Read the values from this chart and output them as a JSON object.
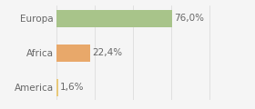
{
  "categories": [
    "America",
    "Africa",
    "Europa"
  ],
  "values": [
    1.6,
    22.4,
    76.0
  ],
  "labels": [
    "1,6%",
    "22,4%",
    "76,0%"
  ],
  "bar_colors": [
    "#e8c87a",
    "#e8a86a",
    "#a8c48a"
  ],
  "background_color": "#f5f5f5",
  "xlim": [
    0,
    110
  ],
  "label_fontsize": 7.5,
  "tick_fontsize": 7.5,
  "bar_height": 0.5
}
